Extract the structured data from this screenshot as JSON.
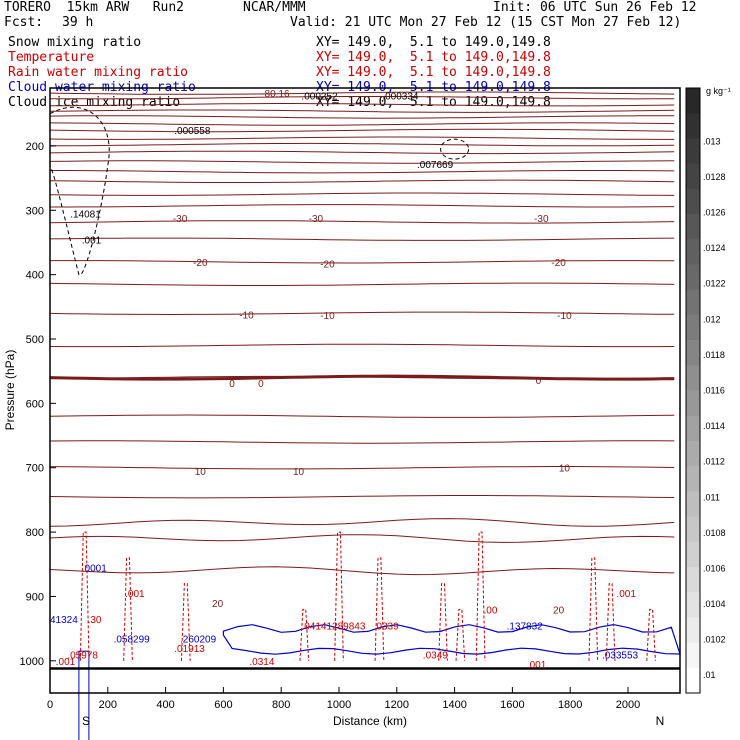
{
  "header": {
    "model": "TORERO  15km ARW   Run2",
    "org": "NCAR/MMM",
    "init": "Init: 06 UTC Sun 26 Feb 12",
    "fcst_label": "Fcst:",
    "fcst_value": "39 h",
    "valid": "Valid: 21 UTC Mon 27 Feb 12 (15 CST Mon 27 Feb 12)"
  },
  "fields": [
    {
      "name": "Snow mixing ratio",
      "xy": "XY= 149.0,  5.1 to 149.0,149.8",
      "color": "#000000"
    },
    {
      "name": "Temperature",
      "xy": "XY= 149.0,  5.1 to 149.0,149.8",
      "color": "#cc0000"
    },
    {
      "name": "Rain water mixing ratio",
      "xy": "XY= 149.0,  5.1 to 149.0,149.8",
      "color": "#cc0000"
    },
    {
      "name": "Cloud water mixing ratio",
      "xy": "XY= 149.0,  5.1 to 149.0,149.8",
      "color": "#0000cc"
    },
    {
      "name": "Cloud ice mixing ratio",
      "xy": "XY= 149.0,  5.1 to 149.0,149.8",
      "color": "#000000"
    }
  ],
  "colors": {
    "temperature": "#7a1c1c",
    "freezing": "#7a1c1c",
    "rain": "#cc0000",
    "cloud_water": "#0000cc",
    "snow": "#000000",
    "ground": "#000000"
  },
  "chart_data": {
    "type": "cross-section contour",
    "xlabel": "Distance (km)",
    "ylabel": "Pressure (hPa)",
    "xlim": [
      0,
      2180
    ],
    "ylim": [
      1050,
      110
    ],
    "x_ticks": [
      0,
      200,
      400,
      600,
      800,
      1000,
      1200,
      1400,
      1600,
      1800,
      2000
    ],
    "y_ticks": [
      200,
      300,
      400,
      500,
      600,
      700,
      800,
      900,
      1000
    ],
    "endpoints": {
      "left": "S",
      "right": "N"
    },
    "colorbar": {
      "unit": "g kg⁻¹",
      "ticks": [
        ".013",
        ".0128",
        ".0126",
        ".0124",
        ".0122",
        ".012",
        ".0118",
        ".0116",
        ".0114",
        ".0112",
        ".011",
        ".0108",
        ".0106",
        ".0104",
        ".0102",
        ".01"
      ],
      "range": [
        0.0099,
        0.0133
      ]
    },
    "isotherm_pressures": [
      118,
      125,
      136,
      146,
      155,
      166,
      176,
      188,
      198,
      210,
      225,
      240,
      255,
      275,
      293,
      318,
      345,
      380,
      415,
      460,
      510,
      560,
      620,
      660,
      700,
      745,
      785,
      810,
      860
    ],
    "freezing_level_hpa": 560,
    "temperature_labels": [
      {
        "x": 450,
        "p": 312,
        "text": "-30"
      },
      {
        "x": 920,
        "p": 312,
        "text": "-30"
      },
      {
        "x": 1700,
        "p": 312,
        "text": "-30"
      },
      {
        "x": 520,
        "p": 380,
        "text": "-20"
      },
      {
        "x": 960,
        "p": 383,
        "text": "-20"
      },
      {
        "x": 1760,
        "p": 380,
        "text": "-20"
      },
      {
        "x": 680,
        "p": 462,
        "text": "-10"
      },
      {
        "x": 960,
        "p": 463,
        "text": "-10"
      },
      {
        "x": 1780,
        "p": 463,
        "text": "-10"
      },
      {
        "x": 630,
        "p": 568,
        "text": "0"
      },
      {
        "x": 730,
        "p": 568,
        "text": "0"
      },
      {
        "x": 1690,
        "p": 564,
        "text": "0"
      },
      {
        "x": 520,
        "p": 705,
        "text": "10"
      },
      {
        "x": 860,
        "p": 705,
        "text": "10"
      },
      {
        "x": 1780,
        "p": 700,
        "text": "10"
      },
      {
        "x": 580,
        "p": 910,
        "text": "20"
      },
      {
        "x": 1760,
        "p": 920,
        "text": "20"
      },
      {
        "x": 780,
        "p": 118,
        "text": "-80.16"
      }
    ],
    "maxima": [
      {
        "x": 430,
        "p": 175,
        "label": ".000558",
        "color": "#000000"
      },
      {
        "x": 1270,
        "p": 228,
        "label": ".007669",
        "color": "#000000"
      },
      {
        "x": 870,
        "p": 122,
        "label": ".000252",
        "color": "#000000"
      },
      {
        "x": 1150,
        "p": 122,
        "label": ".000334",
        "color": "#000000"
      },
      {
        "x": 70,
        "p": 305,
        "label": ".14081",
        "color": "#000000"
      },
      {
        "x": 110,
        "p": 345,
        "label": ".001",
        "color": "#000000"
      },
      {
        "x": 110,
        "p": 855,
        "label": ".0001",
        "color": "#0000cc"
      },
      {
        "x": 0,
        "p": 935,
        "label": "41324",
        "color": "#0000cc"
      },
      {
        "x": 220,
        "p": 965,
        "label": ".058299",
        "color": "#0000cc"
      },
      {
        "x": 450,
        "p": 965,
        "label": ".260209",
        "color": "#0000cc"
      },
      {
        "x": 870,
        "p": 945,
        "label": ".04141289843",
        "color": "#cc0000"
      },
      {
        "x": 1120,
        "p": 945,
        "label": ".0339",
        "color": "#cc0000"
      },
      {
        "x": 1580,
        "p": 945,
        "label": ".137832",
        "color": "#0000cc"
      },
      {
        "x": 1910,
        "p": 990,
        "label": ".033553",
        "color": "#0000cc"
      },
      {
        "x": 60,
        "p": 990,
        "label": ".05978",
        "color": "#cc0000"
      },
      {
        "x": 430,
        "p": 980,
        "label": ".01913",
        "color": "#cc0000"
      },
      {
        "x": 690,
        "p": 1000,
        "label": ".0314",
        "color": "#cc0000"
      },
      {
        "x": 1290,
        "p": 990,
        "label": ".0349",
        "color": "#cc0000"
      },
      {
        "x": 1500,
        "p": 920,
        "label": ".00",
        "color": "#cc0000"
      },
      {
        "x": 1960,
        "p": 895,
        "label": ".001",
        "color": "#cc0000"
      },
      {
        "x": 260,
        "p": 895,
        "label": ".001",
        "color": "#cc0000"
      },
      {
        "x": 1650,
        "p": 1005,
        "label": ".001",
        "color": "#cc0000"
      },
      {
        "x": 130,
        "p": 935,
        "label": ".30",
        "color": "#cc0000"
      },
      {
        "x": 20,
        "p": 1000,
        "label": ".001",
        "color": "#cc0000"
      }
    ]
  }
}
